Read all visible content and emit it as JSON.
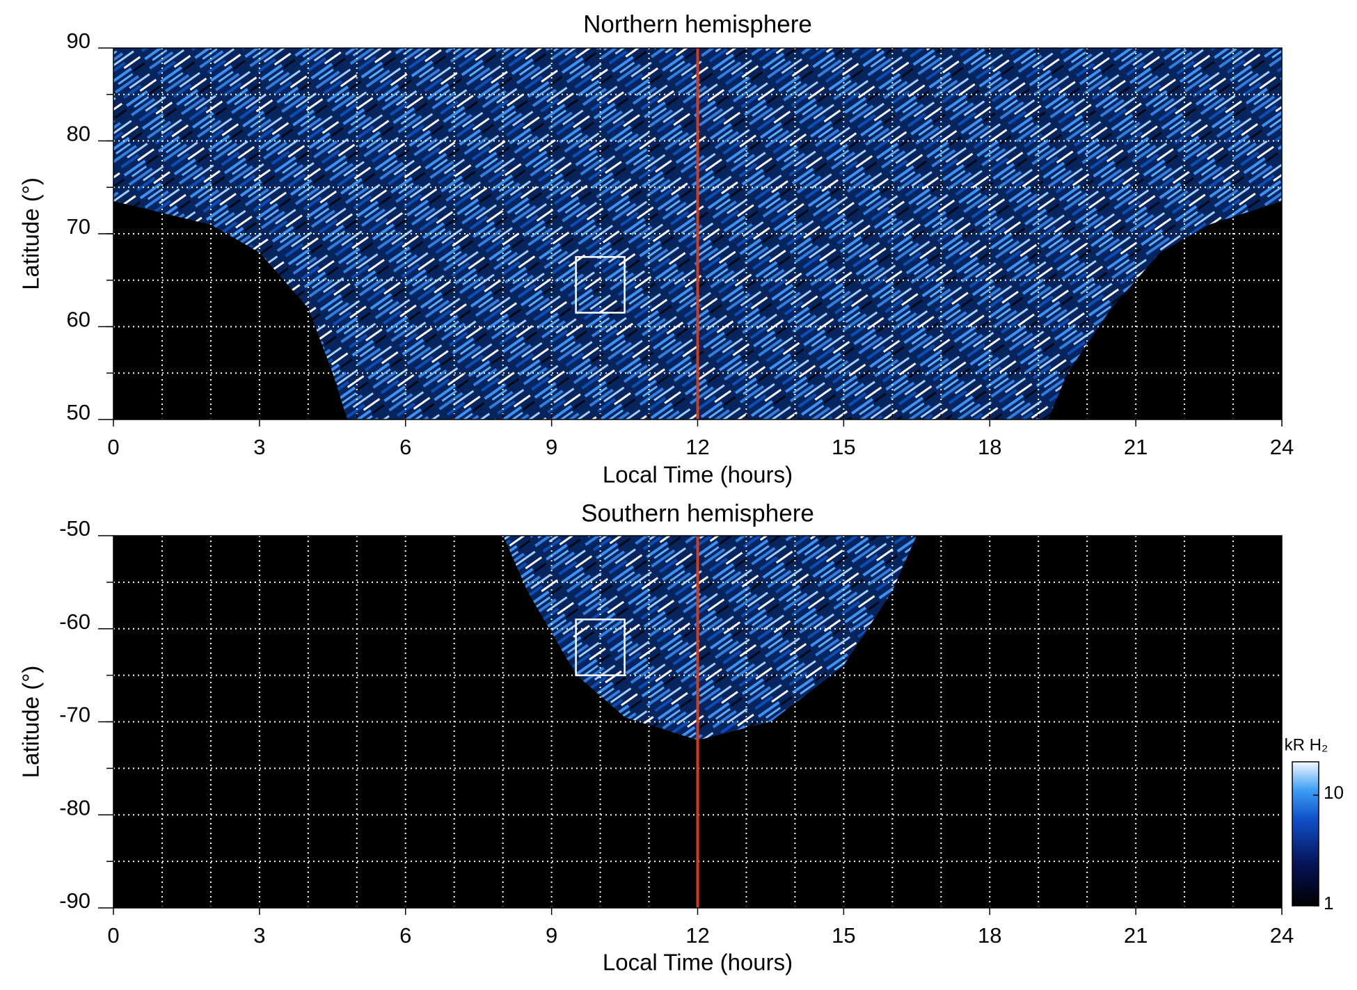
{
  "chart_data": [
    {
      "type": "heatmap",
      "title": "Northern hemisphere",
      "xlabel": "Local Time (hours)",
      "ylabel": "Latitude (°)",
      "xlim": [
        0,
        24
      ],
      "xticks": [
        0,
        3,
        6,
        9,
        12,
        15,
        18,
        21,
        24
      ],
      "ylim": [
        50,
        90
      ],
      "yticks": [
        50,
        60,
        70,
        80,
        90
      ],
      "grid": true,
      "xgrid": [
        1,
        2,
        3,
        4,
        5,
        6,
        7,
        8,
        9,
        10,
        11,
        12,
        13,
        14,
        15,
        16,
        17,
        18,
        19,
        20,
        21,
        22,
        23
      ],
      "ygrid": [
        55,
        60,
        65,
        70,
        75,
        80,
        85
      ],
      "vline": 12,
      "vline_color": "#d23c1c",
      "box": {
        "x": [
          9.5,
          10.5
        ],
        "y": [
          61.5,
          67.5
        ],
        "color": "#ffffff"
      }
    },
    {
      "type": "heatmap",
      "title": "Southern hemisphere",
      "xlabel": "Local Time (hours)",
      "ylabel": "Latitude (°)",
      "xlim": [
        0,
        24
      ],
      "xticks": [
        0,
        3,
        6,
        9,
        12,
        15,
        18,
        21,
        24
      ],
      "ylim": [
        -90,
        -50
      ],
      "yticks": [
        -90,
        -80,
        -70,
        -60,
        -50
      ],
      "grid": true,
      "xgrid": [
        1,
        2,
        3,
        4,
        5,
        6,
        7,
        8,
        9,
        10,
        11,
        12,
        13,
        14,
        15,
        16,
        17,
        18,
        19,
        20,
        21,
        22,
        23
      ],
      "ygrid": [
        -85,
        -80,
        -75,
        -70,
        -65,
        -60,
        -55
      ],
      "vline": 12,
      "vline_color": "#d23c1c",
      "box": {
        "x": [
          9.5,
          10.5
        ],
        "y": [
          -65,
          -59
        ],
        "color": "#ffffff"
      },
      "colorbar": {
        "label": "kR H₂",
        "scale": "log",
        "lim": [
          1,
          20
        ],
        "ticks": [
          1,
          10
        ]
      }
    }
  ]
}
